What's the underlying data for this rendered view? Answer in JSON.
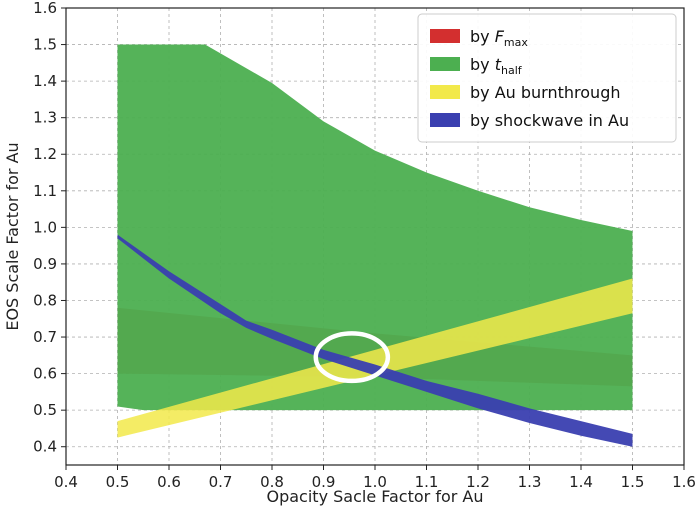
{
  "chart_data": {
    "type": "area",
    "xlabel": "Opacity Sacle Factor for Au",
    "ylabel": "EOS Scale Factor for Au",
    "xlim": [
      0.4,
      1.6
    ],
    "ylim": [
      0.35,
      1.6
    ],
    "xticks": [
      "0.4",
      "0.5",
      "0.6",
      "0.7",
      "0.8",
      "0.9",
      "1.0",
      "1.1",
      "1.2",
      "1.3",
      "1.4",
      "1.5",
      "1.6"
    ],
    "yticks": [
      "0.4",
      "0.5",
      "0.6",
      "0.7",
      "0.8",
      "0.9",
      "1.0",
      "1.1",
      "1.2",
      "1.3",
      "1.4",
      "1.5",
      "1.6"
    ],
    "grid": true,
    "legend_position": "top-right",
    "series": [
      {
        "label_main": "by ",
        "label_var": "F",
        "label_sub": "max",
        "color": "#d32f2f",
        "upper": [
          [
            0.5,
            0.78
          ],
          [
            1.0,
            0.71
          ],
          [
            1.5,
            0.65
          ]
        ],
        "lower": [
          [
            0.5,
            0.6
          ],
          [
            1.0,
            0.59
          ],
          [
            1.5,
            0.565
          ]
        ]
      },
      {
        "label_main": "by ",
        "label_var": "t",
        "label_sub": "half",
        "color": "#4caf50",
        "upper": [
          [
            0.5,
            1.5
          ],
          [
            0.67,
            1.5
          ],
          [
            0.8,
            1.395
          ],
          [
            0.9,
            1.29
          ],
          [
            1.0,
            1.21
          ],
          [
            1.1,
            1.15
          ],
          [
            1.2,
            1.1
          ],
          [
            1.3,
            1.055
          ],
          [
            1.4,
            1.02
          ],
          [
            1.5,
            0.99
          ]
        ],
        "lower": [
          [
            0.5,
            0.51
          ],
          [
            0.55,
            0.5
          ],
          [
            1.5,
            0.5
          ]
        ]
      },
      {
        "label_main": "by Au burnthrough",
        "label_var": "",
        "label_sub": "",
        "color": "#f2e94a",
        "upper": [
          [
            0.5,
            0.47
          ],
          [
            1.0,
            0.665
          ],
          [
            1.5,
            0.86
          ]
        ],
        "lower": [
          [
            0.5,
            0.425
          ],
          [
            1.0,
            0.595
          ],
          [
            1.5,
            0.765
          ]
        ]
      },
      {
        "label_main": "by shockwave in Au",
        "label_var": "",
        "label_sub": "",
        "color": "#3a3fb0",
        "upper": [
          [
            0.5,
            0.98
          ],
          [
            0.6,
            0.88
          ],
          [
            0.7,
            0.79
          ],
          [
            0.75,
            0.745
          ],
          [
            0.8,
            0.72
          ],
          [
            0.9,
            0.665
          ],
          [
            1.0,
            0.625
          ],
          [
            1.1,
            0.58
          ],
          [
            1.2,
            0.545
          ],
          [
            1.3,
            0.505
          ],
          [
            1.4,
            0.47
          ],
          [
            1.5,
            0.435
          ]
        ],
        "lower": [
          [
            0.5,
            0.97
          ],
          [
            0.6,
            0.86
          ],
          [
            0.7,
            0.765
          ],
          [
            0.75,
            0.725
          ],
          [
            0.8,
            0.695
          ],
          [
            0.9,
            0.64
          ],
          [
            1.0,
            0.595
          ],
          [
            1.1,
            0.55
          ],
          [
            1.2,
            0.505
          ],
          [
            1.3,
            0.465
          ],
          [
            1.4,
            0.43
          ],
          [
            1.5,
            0.4
          ]
        ]
      }
    ],
    "annotation": {
      "shape": "ellipse",
      "cx": 0.955,
      "cy": 0.645,
      "rx": 0.07,
      "ry": 0.065,
      "color": "#ffffff"
    }
  }
}
